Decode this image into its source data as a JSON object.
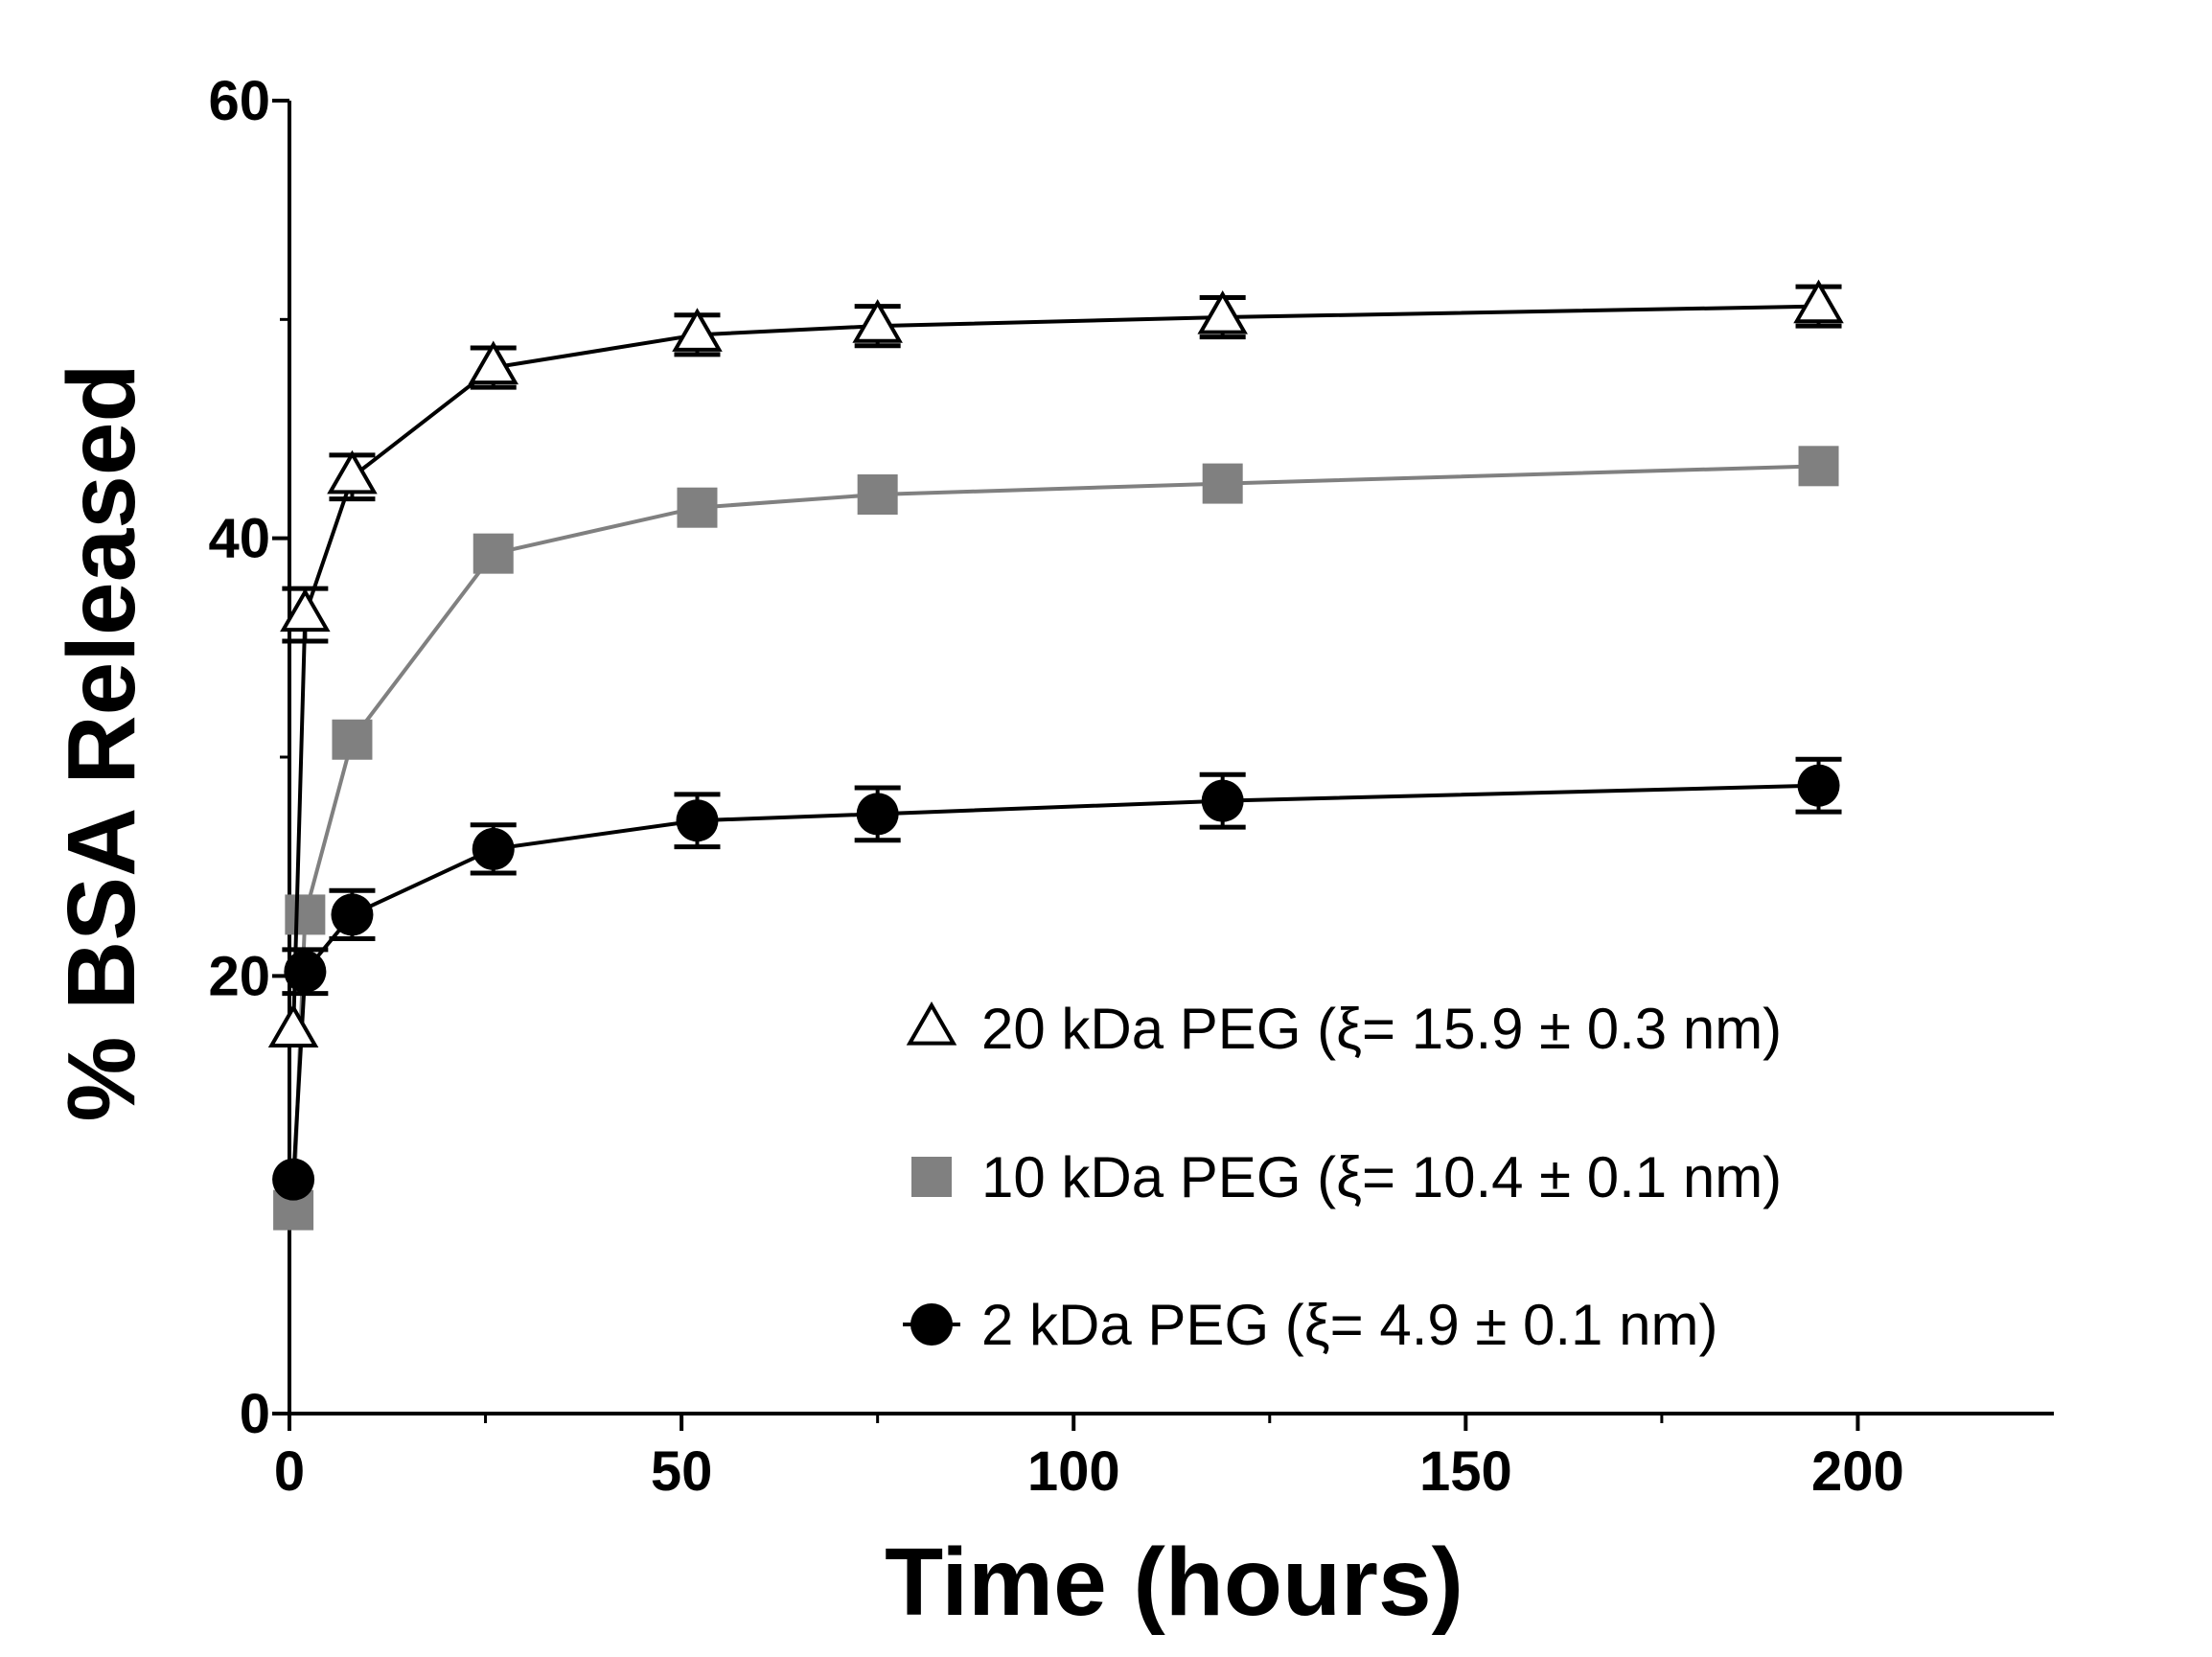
{
  "chart_data": {
    "type": "line",
    "title": "",
    "xlabel": "Time (hours)",
    "ylabel": "% BSA Released",
    "xlim": [
      0,
      225
    ],
    "ylim": [
      0,
      60
    ],
    "xticks": [
      0,
      50,
      100,
      150,
      200
    ],
    "yticks": [
      0,
      20,
      40,
      60
    ],
    "grid": false,
    "legend_position": "bottom-right",
    "series": [
      {
        "name": "20 kDa PEG (ξ= 15.9 ± 0.3 nm)",
        "marker": "open-triangle",
        "color": "#000000",
        "x": [
          0.5,
          2,
          8,
          26,
          52,
          75,
          119,
          195
        ],
        "y": [
          17.5,
          36.5,
          42.8,
          47.8,
          49.3,
          49.7,
          50.1,
          50.6
        ],
        "err": [
          0,
          1.2,
          1.0,
          0.9,
          0.9,
          0.9,
          0.9,
          0.9
        ]
      },
      {
        "name": "10 kDa PEG (ξ= 10.4 ± 0.1 nm)",
        "marker": "filled-square",
        "color": "#808080",
        "x": [
          0.5,
          2,
          8,
          26,
          52,
          75,
          119,
          195
        ],
        "y": [
          9.3,
          22.8,
          30.8,
          39.3,
          41.4,
          42.0,
          42.5,
          43.3
        ],
        "err": [
          0,
          0,
          0,
          0,
          0,
          0,
          0,
          0
        ]
      },
      {
        "name": "2 kDa PEG (ξ= 4.9 ± 0.1 nm)",
        "marker": "filled-circle",
        "color": "#000000",
        "x": [
          0.5,
          2,
          8,
          26,
          52,
          75,
          119,
          195
        ],
        "y": [
          10.7,
          20.2,
          22.8,
          25.8,
          27.1,
          27.4,
          28.0,
          28.7
        ],
        "err": [
          0,
          1.0,
          1.1,
          1.1,
          1.2,
          1.2,
          1.2,
          1.2
        ]
      }
    ]
  }
}
